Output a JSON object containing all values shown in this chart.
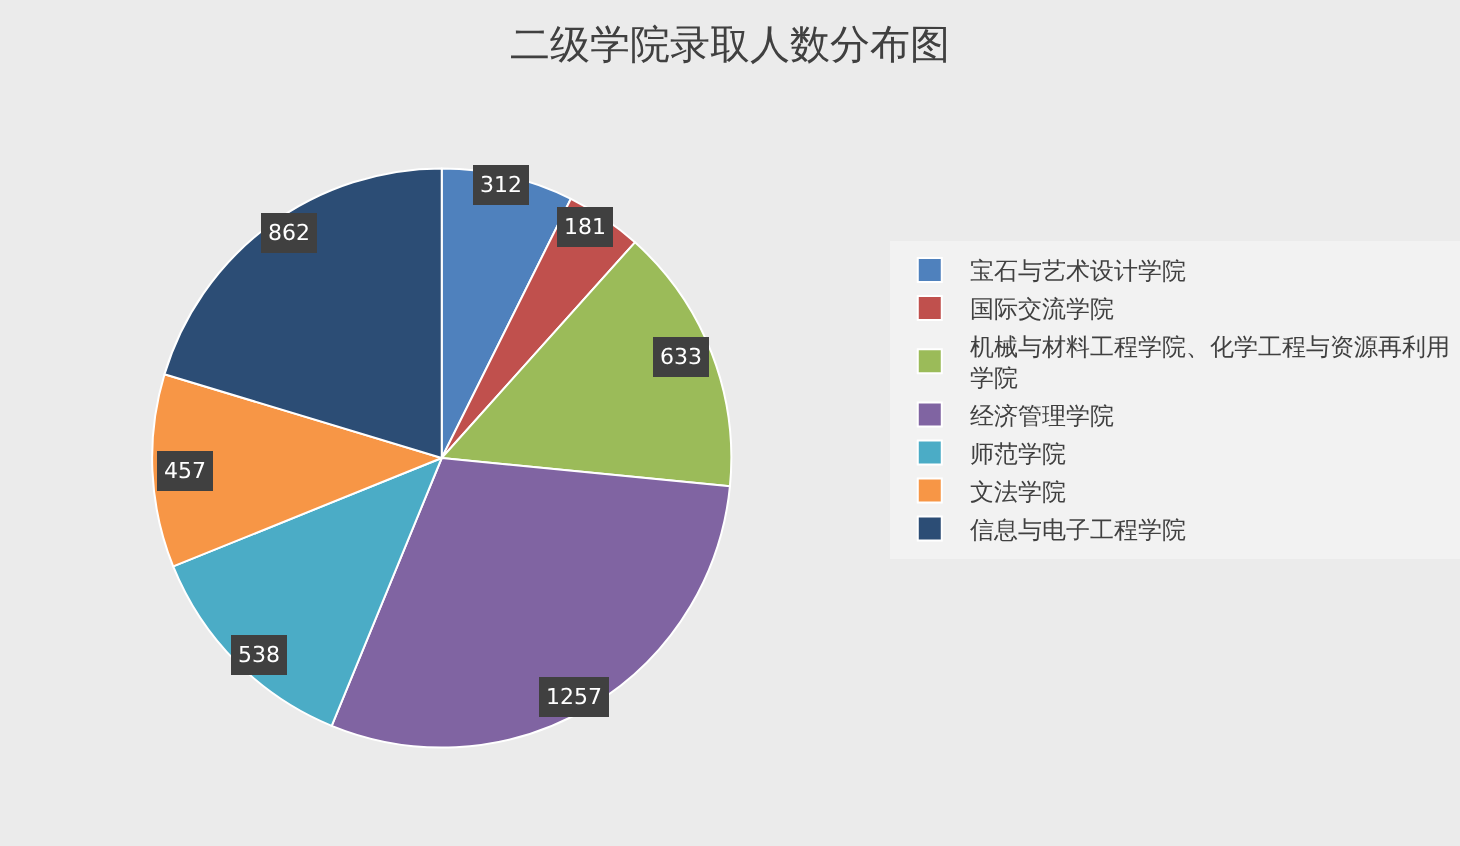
{
  "chart_data": {
    "type": "pie",
    "title": "二级学院录取人数分布图",
    "categories": [
      "宝石与艺术设计学院",
      "国际交流学院",
      "机械与材料工程学院、化学工程与资源再利用学院",
      "经济管理学院",
      "师范学院",
      "文法学院",
      "信息与电子工程学院"
    ],
    "values": [
      312,
      181,
      633,
      1257,
      538,
      457,
      862
    ],
    "colors": [
      "#4f81bd",
      "#c0504d",
      "#9bbb59",
      "#8064a2",
      "#4bacc6",
      "#f79646",
      "#2c4d75"
    ],
    "data_labels": true,
    "legend": "right"
  }
}
